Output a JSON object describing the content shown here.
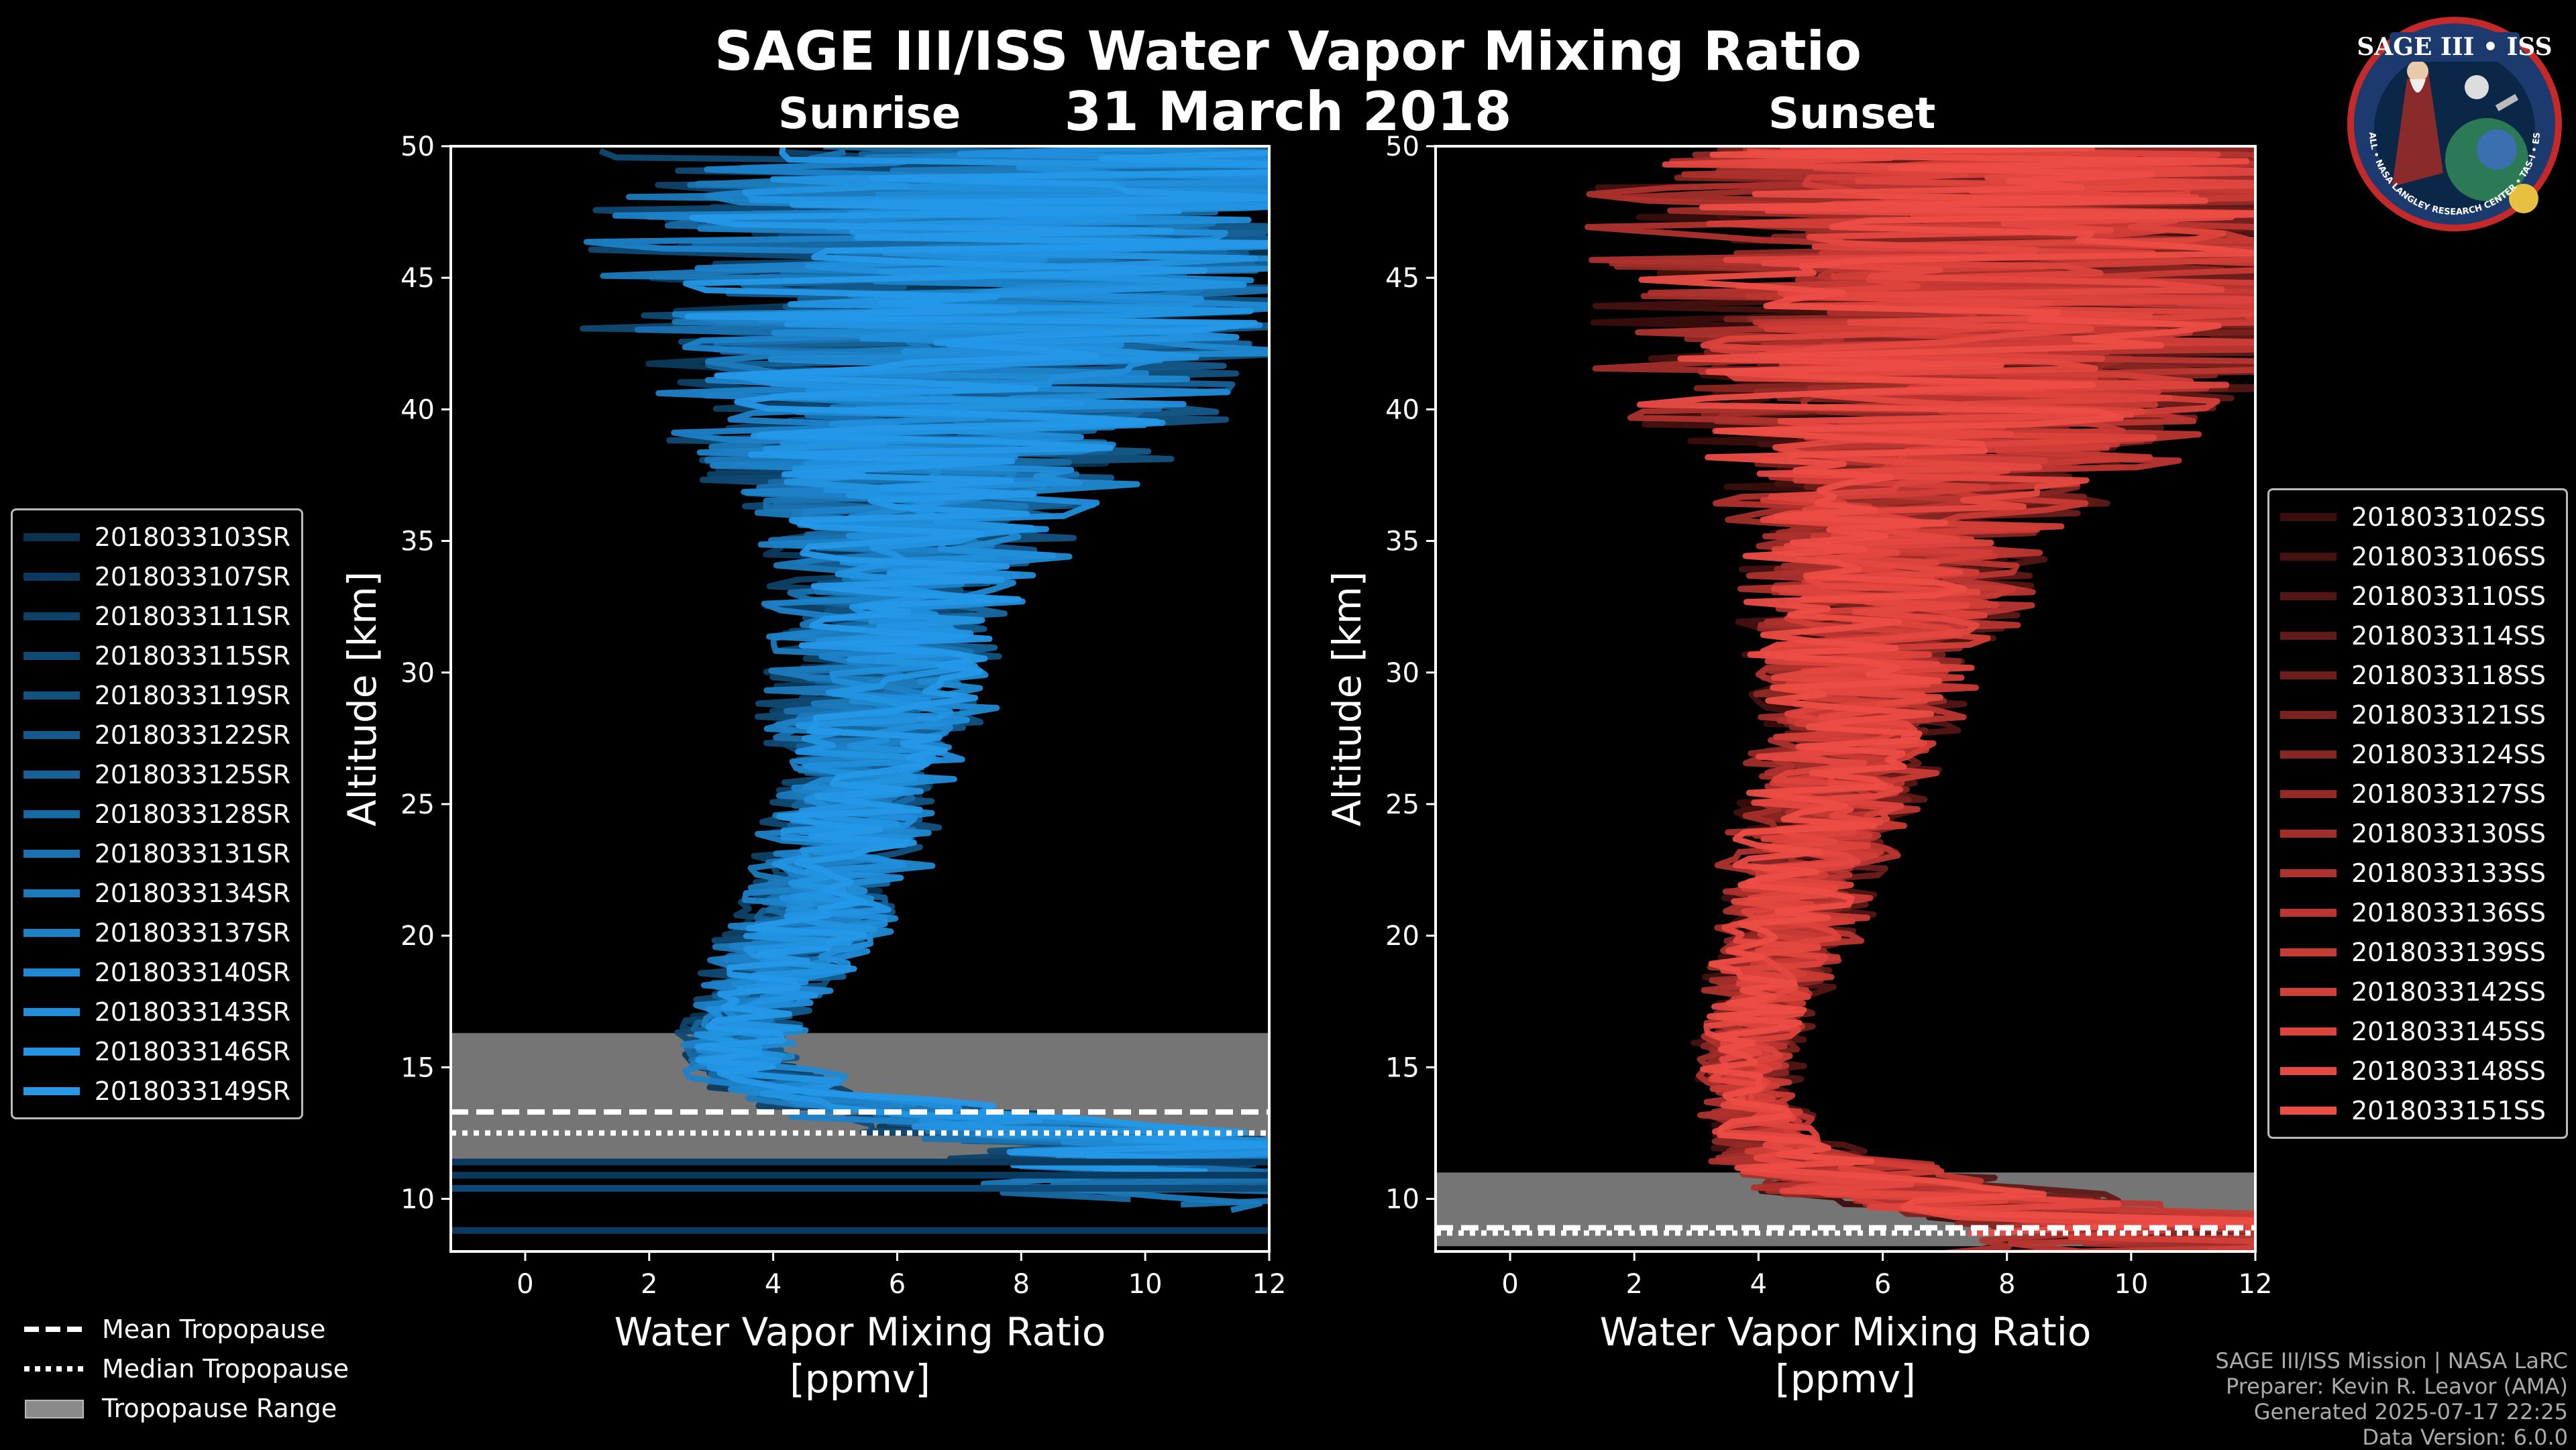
{
  "title": "SAGE III/ISS Water Vapor Mixing Ratio",
  "date": "31 March 2018",
  "logo": {
    "text": "SAGE III • ISS",
    "ring": "BALL • NASA LANGLEY RESEARCH CENTER • TAS-I • ESA"
  },
  "credits": [
    "SAGE III/ISS Mission | NASA LaRC",
    "Preparer: Kevin R. Leavor (AMA)",
    "Generated 2025-07-17 22:25",
    "Data Version: 6.0.0"
  ],
  "bottom_legend": {
    "mean": "Mean Tropopause",
    "median": "Median Tropopause",
    "range": "Tropopause Range"
  },
  "colors": {
    "sunrise": "#1b8fd6",
    "sunset": "#e8534a",
    "tropopause_range": "#8a8a8a"
  },
  "chart_data": [
    {
      "type": "line",
      "title": "Sunrise",
      "xlabel": "Water Vapor Mixing Ratio\n[ppmv]",
      "ylabel": "Altitude [km]",
      "xlim": [
        -1.2,
        12
      ],
      "ylim": [
        8,
        50
      ],
      "xticks": [
        0,
        2,
        4,
        6,
        8,
        10,
        12
      ],
      "yticks": [
        10,
        15,
        20,
        25,
        30,
        35,
        40,
        45,
        50
      ],
      "tropopause": {
        "mean": 13.3,
        "median": 12.5,
        "range": [
          11.5,
          16.3
        ]
      },
      "series_names": [
        "2018033103SR",
        "2018033107SR",
        "2018033111SR",
        "2018033115SR",
        "2018033119SR",
        "2018033122SR",
        "2018033125SR",
        "2018033128SR",
        "2018033131SR",
        "2018033134SR",
        "2018033137SR",
        "2018033140SR",
        "2018033143SR",
        "2018033146SR",
        "2018033149SR"
      ],
      "series_colors": [
        "#0a3350",
        "#0c3a5c",
        "#0e4268",
        "#104a74",
        "#125280",
        "#145a8c",
        "#166298",
        "#186aa4",
        "#1a72b0",
        "#1c7abc",
        "#1e82c8",
        "#2089d2",
        "#218edb",
        "#2393e2",
        "#2598e8"
      ],
      "profile": {
        "alt": [
          12,
          14,
          15.5,
          17,
          19,
          21,
          23,
          25,
          27,
          29,
          31,
          33,
          35,
          37,
          39,
          41,
          43,
          45,
          47,
          49.5
        ],
        "median": [
          10.5,
          4.3,
          3.3,
          3.6,
          4.2,
          4.7,
          5.1,
          5.3,
          5.5,
          5.7,
          5.9,
          6.1,
          6.2,
          6.4,
          6.6,
          6.8,
          7.2,
          7.5,
          7.8,
          8.2
        ],
        "spread": [
          3.0,
          1.2,
          0.7,
          0.8,
          1.0,
          1.0,
          1.1,
          1.1,
          1.2,
          1.4,
          1.5,
          1.7,
          1.9,
          2.4,
          3.2,
          4.0,
          4.5,
          4.8,
          5.0,
          5.0
        ]
      }
    },
    {
      "type": "line",
      "title": "Sunset",
      "xlabel": "Water Vapor Mixing Ratio\n[ppmv]",
      "ylabel": "Altitude [km]",
      "xlim": [
        -1.2,
        12
      ],
      "ylim": [
        8,
        50
      ],
      "xticks": [
        0,
        2,
        4,
        6,
        8,
        10,
        12
      ],
      "yticks": [
        10,
        15,
        20,
        25,
        30,
        35,
        40,
        45,
        50
      ],
      "tropopause": {
        "mean": 8.9,
        "median": 8.7,
        "range": [
          8.2,
          11.0
        ]
      },
      "series_names": [
        "2018033102SS",
        "2018033106SS",
        "2018033110SS",
        "2018033114SS",
        "2018033118SS",
        "2018033121SS",
        "2018033124SS",
        "2018033127SS",
        "2018033130SS",
        "2018033133SS",
        "2018033136SS",
        "2018033139SS",
        "2018033142SS",
        "2018033145SS",
        "2018033148SS",
        "2018033151SS"
      ],
      "series_colors": [
        "#3a0e0c",
        "#461210",
        "#531614",
        "#601a17",
        "#6d1e1b",
        "#7a221e",
        "#872622",
        "#942a26",
        "#a12e29",
        "#ae322d",
        "#bb3631",
        "#c83a34",
        "#d23e38",
        "#dc433c",
        "#e44840",
        "#ec4d45"
      ],
      "profile": {
        "alt": [
          9,
          10.5,
          12,
          14,
          16,
          18,
          20,
          22,
          24,
          26,
          28,
          30,
          32,
          34,
          36,
          38,
          40,
          42,
          44,
          46,
          48,
          49.8
        ],
        "median": [
          10.5,
          6.0,
          4.3,
          3.8,
          3.9,
          4.2,
          4.5,
          4.7,
          5.0,
          5.3,
          5.6,
          5.8,
          6.0,
          6.2,
          6.5,
          6.8,
          7.0,
          7.4,
          7.8,
          8.1,
          8.4,
          8.6
        ],
        "spread": [
          3.0,
          1.8,
          0.8,
          0.6,
          0.7,
          0.8,
          0.9,
          1.0,
          1.1,
          1.2,
          1.3,
          1.5,
          1.7,
          1.9,
          2.3,
          2.9,
          3.8,
          4.6,
          5.0,
          5.0,
          5.0,
          5.0
        ]
      }
    }
  ]
}
